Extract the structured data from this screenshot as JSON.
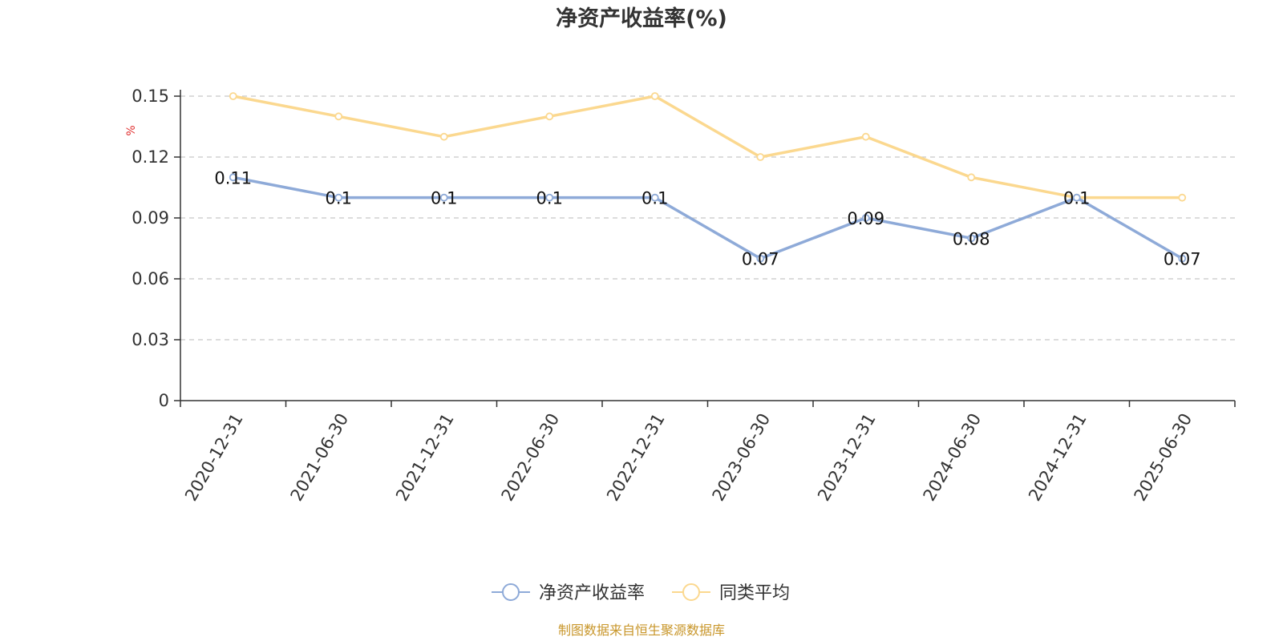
{
  "chart_data": {
    "type": "line",
    "title": "净资产收益率(%)",
    "ylabel": "%",
    "xlabel": "",
    "categories": [
      "2020-12-31",
      "2021-06-30",
      "2021-12-31",
      "2022-06-30",
      "2022-12-31",
      "2023-06-30",
      "2023-12-31",
      "2024-06-30",
      "2024-12-31",
      "2025-06-30"
    ],
    "yticks": [
      "0",
      "0.03",
      "0.06",
      "0.09",
      "0.12",
      "0.15"
    ],
    "ylim": [
      0,
      0.15
    ],
    "grid": true,
    "legend_position": "bottom-center",
    "series": [
      {
        "name": "净资产收益率",
        "color": "#8eaad8",
        "values": [
          0.11,
          0.1,
          0.1,
          0.1,
          0.1,
          0.07,
          0.09,
          0.08,
          0.1,
          0.07
        ],
        "labels": [
          "0.11",
          "0.1",
          "0.1",
          "0.1",
          "0.1",
          "0.07",
          "0.09",
          "0.08",
          "0.1",
          "0.07"
        ]
      },
      {
        "name": "同类平均",
        "color": "#fbd88f",
        "values": [
          0.15,
          0.14,
          0.13,
          0.14,
          0.15,
          0.12,
          0.13,
          0.11,
          0.1,
          0.1
        ]
      }
    ],
    "source": "制图数据来自恒生聚源数据库"
  }
}
